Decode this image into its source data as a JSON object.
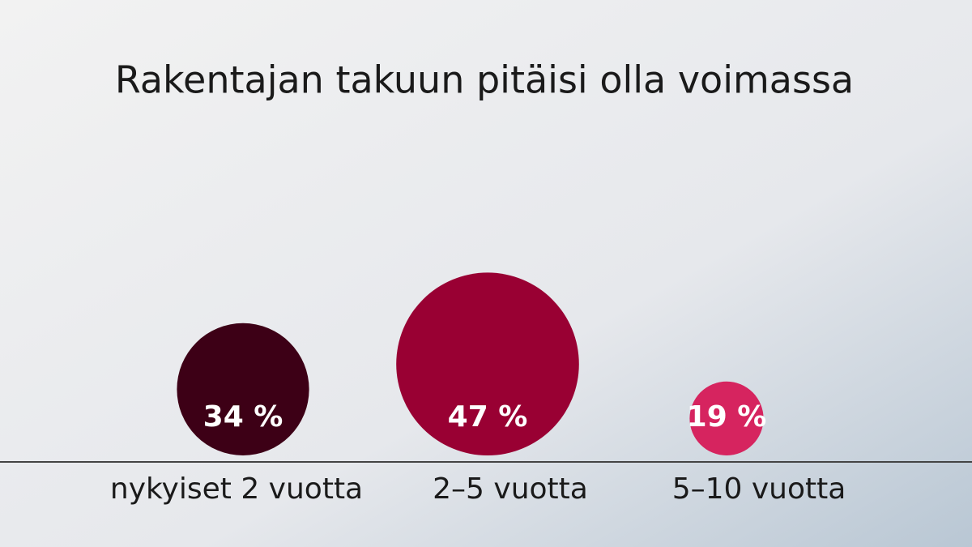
{
  "chart_data": {
    "type": "bubble",
    "title": "Rakentajan takuun pitäisi olla voimassa",
    "categories": [
      "nykyiset 2 vuotta",
      "2–5 vuotta",
      "5–10 vuotta"
    ],
    "values": [
      34,
      47,
      19
    ],
    "value_labels": [
      "34 %",
      "47 %",
      "19 %"
    ],
    "colors": [
      "#3d0016",
      "#990033",
      "#d6245f"
    ]
  }
}
